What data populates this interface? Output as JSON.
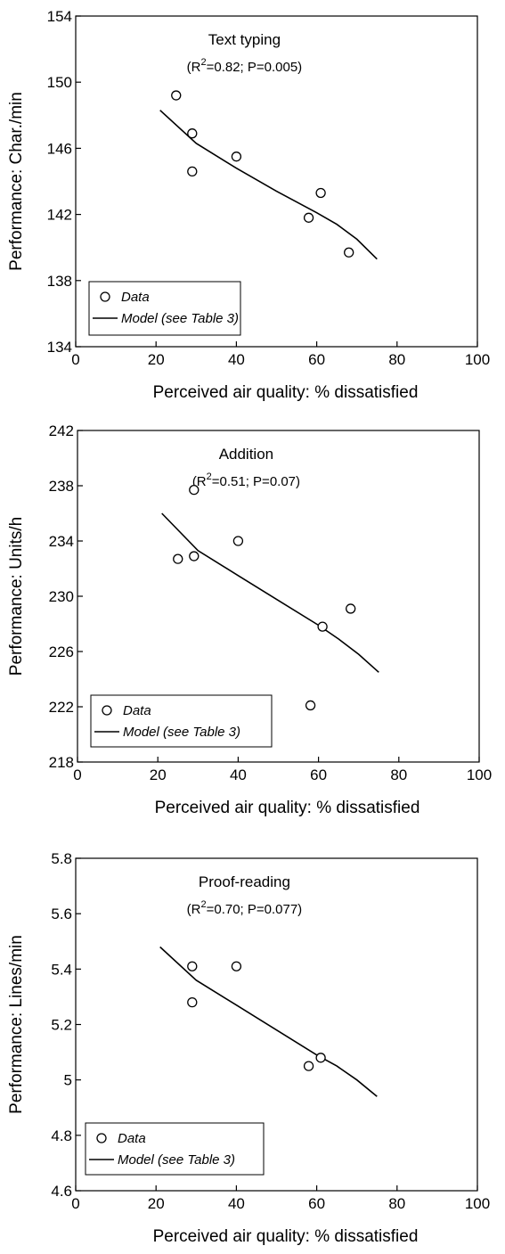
{
  "chart_data": [
    {
      "type": "scatter",
      "title": "Text typing",
      "stats": {
        "r2_prefix": "(R",
        "r2_sup": "2",
        "r2_rest": "=0.82; P=0.005)"
      },
      "xlabel": "Perceived air quality: % dissatisfied",
      "ylabel": "Performance: Char./min",
      "xlim": [
        0,
        100
      ],
      "ylim": [
        134,
        154
      ],
      "xticks": [
        0,
        20,
        40,
        60,
        80,
        100
      ],
      "yticks": [
        134,
        138,
        142,
        146,
        150,
        154
      ],
      "ytick_labels": [
        "134",
        "138",
        "142",
        "146",
        "150",
        "154"
      ],
      "legend": {
        "data_label": "Data",
        "model_label": "Model (see Table 3)",
        "placement": "bottom-left"
      },
      "series": [
        {
          "name": "Data",
          "kind": "points",
          "x": [
            25,
            29,
            29,
            40,
            58,
            61,
            68
          ],
          "y": [
            149.2,
            146.9,
            144.6,
            145.5,
            141.8,
            143.3,
            139.7
          ]
        },
        {
          "name": "Model (see Table 3)",
          "kind": "line",
          "x": [
            21,
            30,
            40,
            50,
            60,
            65,
            70,
            75
          ],
          "y": [
            148.3,
            146.3,
            144.8,
            143.4,
            142.1,
            141.4,
            140.5,
            139.3
          ]
        }
      ],
      "grid": false
    },
    {
      "type": "scatter",
      "title": "Addition",
      "stats": {
        "r2_prefix": "(R",
        "r2_sup": "2",
        "r2_rest": "=0.51; P=0.07)"
      },
      "xlabel": "Perceived air quality: % dissatisfied",
      "ylabel": "Performance: Units/h",
      "xlim": [
        0,
        100
      ],
      "ylim": [
        218,
        242
      ],
      "xticks": [
        0,
        20,
        40,
        60,
        80,
        100
      ],
      "yticks": [
        218,
        222,
        226,
        230,
        234,
        238,
        242
      ],
      "ytick_labels": [
        "218",
        "222",
        "226",
        "230",
        "234",
        "238",
        "242"
      ],
      "legend": {
        "data_label": "Data",
        "model_label": "Model (see Table 3)",
        "placement": "bottom-left"
      },
      "series": [
        {
          "name": "Data",
          "kind": "points",
          "x": [
            25,
            29,
            29,
            40,
            58,
            61,
            68
          ],
          "y": [
            232.7,
            232.9,
            237.7,
            234.0,
            222.1,
            227.8,
            229.1
          ]
        },
        {
          "name": "Model (see Table 3)",
          "kind": "line",
          "x": [
            21,
            30,
            40,
            50,
            60,
            65,
            70,
            75
          ],
          "y": [
            236.0,
            233.3,
            231.5,
            229.7,
            227.9,
            226.9,
            225.8,
            224.5
          ]
        }
      ],
      "grid": false
    },
    {
      "type": "scatter",
      "title": "Proof-reading",
      "stats": {
        "r2_prefix": "(R",
        "r2_sup": "2",
        "r2_rest": "=0.70; P=0.077)"
      },
      "xlabel": "Perceived air quality: % dissatisfied",
      "ylabel": "Performance: Lines/min",
      "xlim": [
        0,
        100
      ],
      "ylim": [
        4.6,
        5.8
      ],
      "xticks": [
        0,
        20,
        40,
        60,
        80,
        100
      ],
      "yticks": [
        4.6,
        4.8,
        5.0,
        5.2,
        5.4,
        5.6,
        5.8
      ],
      "ytick_labels": [
        "4.6",
        "4.8",
        "5",
        "5.2",
        "5.4",
        "5.6",
        "5.8"
      ],
      "legend": {
        "data_label": "Data",
        "model_label": "Model (see Table 3)",
        "placement": "bottom-left"
      },
      "series": [
        {
          "name": "Data",
          "kind": "points",
          "x": [
            29,
            29,
            40,
            58,
            61
          ],
          "y": [
            5.41,
            5.28,
            5.41,
            5.05,
            5.08
          ]
        },
        {
          "name": "Model (see Table 3)",
          "kind": "line",
          "x": [
            21,
            30,
            40,
            50,
            60,
            65,
            70,
            75
          ],
          "y": [
            5.48,
            5.36,
            5.27,
            5.18,
            5.09,
            5.05,
            5.0,
            4.94
          ]
        }
      ],
      "grid": false
    }
  ]
}
